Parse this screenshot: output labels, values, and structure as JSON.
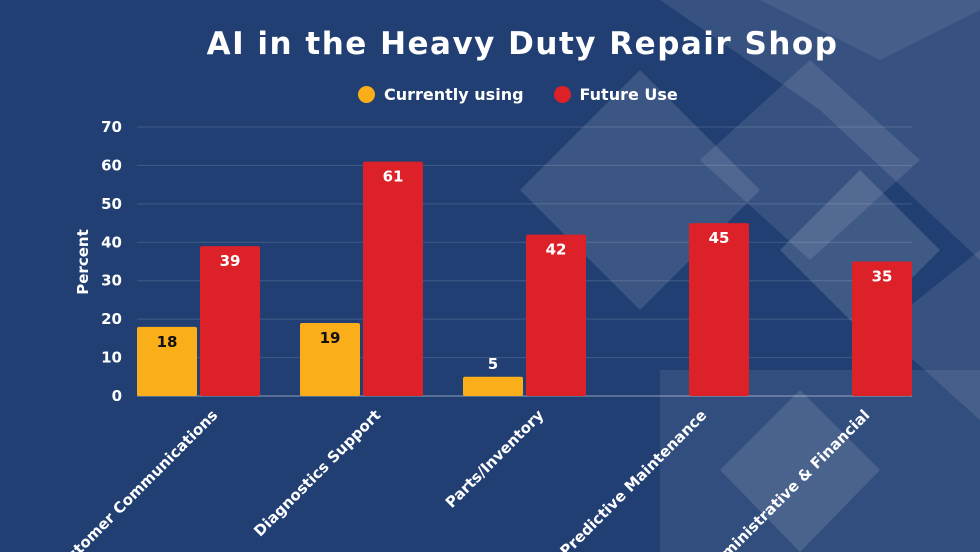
{
  "chart_data": {
    "type": "bar",
    "title": "AI in the Heavy Duty Repair Shop",
    "ylabel": "Percent",
    "xlabel": "",
    "ylim": [
      0,
      70
    ],
    "yticks": [
      0,
      10,
      20,
      30,
      40,
      50,
      60,
      70
    ],
    "grid": true,
    "legend_position": "top",
    "categories": [
      "Customer Communications",
      "Diagnostics Support",
      "Parts/Inventory",
      "Predictive Maintenance",
      "Administrative & Financial"
    ],
    "series": [
      {
        "name": "Currently using",
        "color": "#f9ae1a",
        "values": [
          18,
          19,
          5,
          null,
          null
        ]
      },
      {
        "name": "Future Use",
        "color": "#dc2128",
        "values": [
          39,
          61,
          42,
          45,
          35
        ]
      }
    ]
  },
  "colors": {
    "background": "#213f73",
    "text": "#ffffff"
  }
}
